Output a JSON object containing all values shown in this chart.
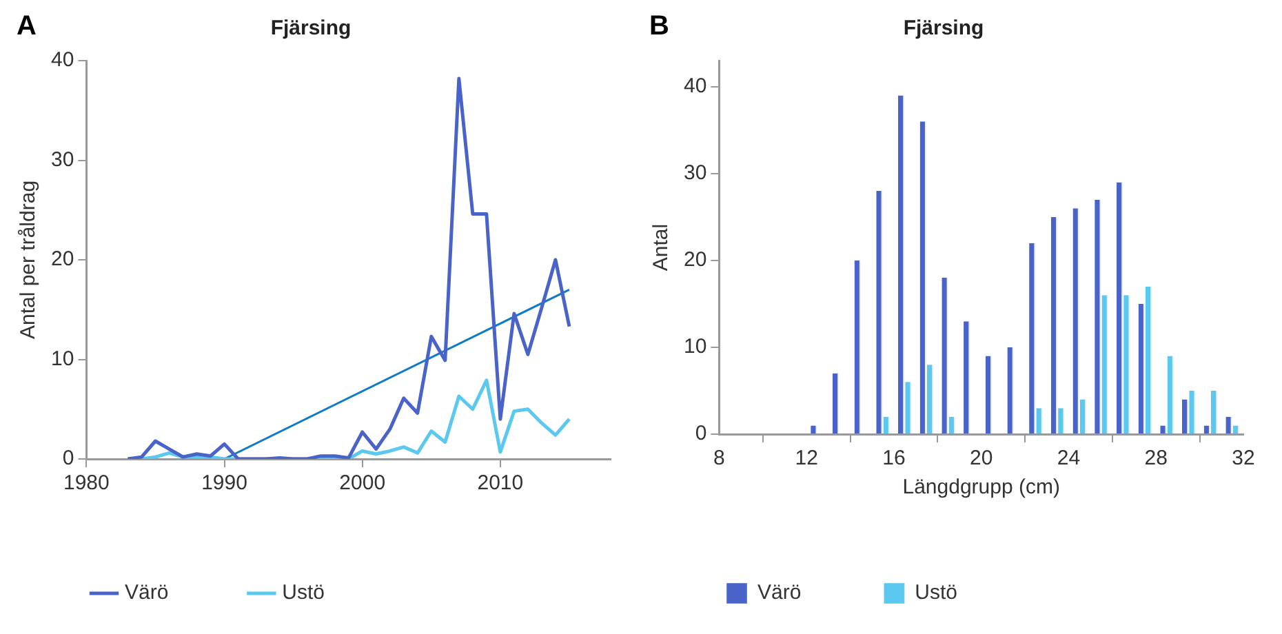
{
  "chart_data": [
    {
      "type": "line",
      "title": "Fjärsing",
      "ylabel": "Antal per tråldrag",
      "annotations": [
        "A"
      ],
      "x": [
        1983,
        1984,
        1985,
        1986,
        1987,
        1988,
        1989,
        1990,
        1991,
        1992,
        1993,
        1994,
        1995,
        1996,
        1997,
        1998,
        1999,
        2000,
        2001,
        2002,
        2003,
        2004,
        2005,
        2006,
        2007,
        2008,
        2009,
        2010,
        2011,
        2012,
        2013,
        2014,
        2015
      ],
      "series": [
        {
          "name": "Värö",
          "color": "#4a63c8",
          "values": [
            0,
            0.2,
            1.8,
            1.0,
            0.2,
            0.5,
            0.3,
            1.5,
            0,
            0,
            0,
            0.1,
            0,
            0,
            0.3,
            0.3,
            0.1,
            2.7,
            1.0,
            3.0,
            6.1,
            4.6,
            12.3,
            9.9,
            38.2,
            24.6,
            24.6,
            4.0,
            14.6,
            10.5,
            15.2,
            20.0,
            13.3
          ]
        },
        {
          "name": "Ustö",
          "color": "#5bc8ef",
          "values": [
            0,
            0,
            0.2,
            0.6,
            0.2,
            0.2,
            0.2,
            0,
            0,
            0,
            0,
            0,
            0,
            0,
            0,
            0,
            0,
            0.8,
            0.5,
            0.8,
            1.2,
            0.6,
            2.8,
            1.7,
            6.3,
            5.0,
            7.9,
            0.7,
            4.8,
            5.0,
            3.6,
            2.4,
            4.0
          ]
        },
        {
          "type": "line",
          "color": "#0f7bc4",
          "x": [
            1990,
            2015
          ],
          "values": [
            0,
            17
          ]
        }
      ],
      "xlim": [
        1980,
        2018
      ],
      "xticks": [
        1980,
        1990,
        2000,
        2010
      ],
      "ylim": [
        0,
        40
      ],
      "yticks": [
        0,
        10,
        20,
        30,
        40
      ],
      "grid": false,
      "legend": "bottom",
      "marker": "none"
    },
    {
      "type": "bar",
      "title": "Fjärsing",
      "xlabel": "Längdgrupp (cm)",
      "ylabel": "Antal",
      "annotations": [
        "B"
      ],
      "x": [
        12.5,
        13.5,
        14.5,
        15.5,
        16.5,
        17.5,
        18.5,
        19.5,
        20.5,
        21.5,
        22.5,
        23.5,
        24.5,
        25.5,
        26.5,
        27.5,
        28.5,
        29.5,
        30.5,
        31.5
      ],
      "series": [
        {
          "name": "Värö",
          "color": "#4a63c8",
          "values": [
            1,
            7,
            20,
            28,
            39,
            36,
            18,
            13,
            9,
            10,
            22,
            25,
            26,
            27,
            29,
            15,
            1,
            4,
            1,
            2
          ]
        },
        {
          "name": "Ustö",
          "color": "#5bc8ef",
          "values": [
            0,
            0,
            0,
            2,
            6,
            8,
            2,
            0,
            0,
            0,
            3,
            3,
            4,
            16,
            16,
            17,
            9,
            5,
            5,
            1
          ]
        }
      ],
      "xlim": [
        8,
        32
      ],
      "xticks": [
        8,
        12,
        16,
        20,
        24,
        28,
        32
      ],
      "ylim": [
        0,
        43
      ],
      "yticks": [
        0,
        10,
        20,
        30,
        40
      ],
      "grid": false,
      "legend": "bottom"
    }
  ]
}
